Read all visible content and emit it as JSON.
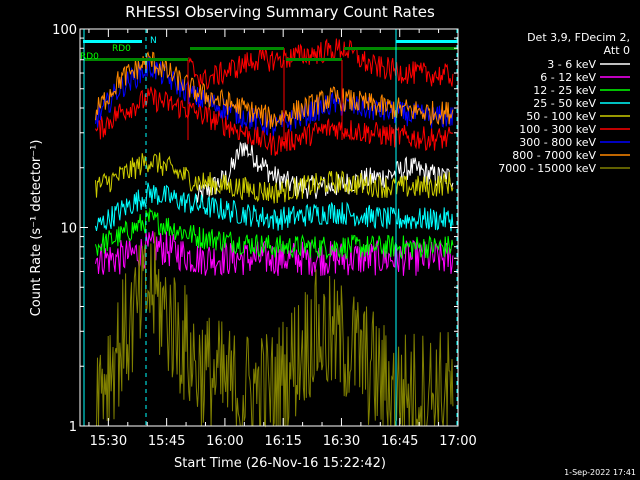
{
  "chart_data": {
    "type": "line",
    "title": "RHESSI Observing Summary Count Rates",
    "xlabel": "Start Time (26-Nov-16 15:22:42)",
    "ylabel": "Count Rate (s⁻¹ detector⁻¹)",
    "yscale": "log",
    "ylim": [
      1,
      100
    ],
    "xlim": [
      "15:22:42",
      "17:00:00"
    ],
    "x_ticks": [
      "15:30",
      "15:45",
      "16:00",
      "16:15",
      "16:30",
      "16:45",
      "17:00"
    ],
    "y_ticks": [
      "1",
      "10",
      "100"
    ],
    "legend": {
      "position": "top-right",
      "header": [
        "Det 3,9, FDecim 2,",
        "Att 0"
      ]
    },
    "series": [
      {
        "name": "3 - 6 keV",
        "color": "#ffffff",
        "x_min": [
          30,
          38,
          42,
          50,
          56,
          65,
          70,
          78,
          85,
          92,
          96
        ],
        "values": [
          14,
          18,
          26,
          18,
          16,
          16,
          17,
          18,
          20,
          18,
          18
        ]
      },
      {
        "name": "6 - 12 keV",
        "color": "#ff00ff",
        "x_min": [
          4,
          10,
          20,
          30,
          50,
          70,
          80,
          90,
          96
        ],
        "values": [
          7,
          7,
          8,
          7,
          7,
          7,
          7,
          7,
          7
        ]
      },
      {
        "name": "12 - 25 keV",
        "color": "#00ff00",
        "x_min": [
          4,
          10,
          18,
          30,
          50,
          70,
          80,
          90,
          96
        ],
        "values": [
          8,
          9,
          11,
          9,
          8,
          8,
          8,
          8,
          8
        ]
      },
      {
        "name": "25 - 50 keV",
        "color": "#00ffff",
        "x_min": [
          4,
          10,
          18,
          30,
          50,
          65,
          80,
          90,
          96
        ],
        "values": [
          10,
          12,
          15,
          13,
          11,
          12,
          11,
          11,
          11
        ]
      },
      {
        "name": "50 - 100 keV",
        "color": "#cccc00",
        "x_min": [
          4,
          10,
          18,
          30,
          50,
          65,
          80,
          90,
          96
        ],
        "values": [
          16,
          18,
          22,
          17,
          15,
          17,
          16,
          16,
          17
        ]
      },
      {
        "name": "100 - 300 keV",
        "color": "#ff0000",
        "x_min": [
          4,
          10,
          18,
          30,
          50,
          65,
          80,
          90,
          96
        ],
        "values": [
          30,
          38,
          45,
          38,
          26,
          32,
          29,
          28,
          28
        ]
      },
      {
        "name": "300 - 800 keV",
        "color": "#0000ff",
        "x_min": [
          4,
          10,
          18,
          30,
          50,
          65,
          80,
          90,
          96
        ],
        "values": [
          35,
          50,
          65,
          45,
          32,
          42,
          38,
          36,
          36
        ]
      },
      {
        "name": "800 - 7000 keV",
        "color": "#ff8800",
        "x_min": [
          4,
          10,
          18,
          30,
          50,
          65,
          80,
          90,
          96
        ],
        "values": [
          38,
          55,
          70,
          48,
          35,
          45,
          40,
          38,
          38
        ]
      },
      {
        "name": "7000 - 15000 keV",
        "color": "#808000",
        "x_min": [
          4,
          10,
          18,
          25,
          30,
          40,
          50,
          60,
          70,
          80,
          90,
          96
        ],
        "values": [
          1.5,
          2.5,
          5,
          3,
          2,
          1.5,
          1.5,
          3,
          2.5,
          1.5,
          1.5,
          1.5
        ]
      },
      {
        "name": "",
        "color": "#ff0000",
        "x_min": [
          28,
          32,
          45,
          50,
          68,
          75,
          85,
          96
        ],
        "values": [
          65,
          55,
          70,
          70,
          80,
          65,
          60,
          58
        ]
      }
    ],
    "flag_labels": [
      "RD0",
      "RD0",
      "N"
    ]
  },
  "footer": {
    "timestamp": "1-Sep-2022 17:41"
  }
}
